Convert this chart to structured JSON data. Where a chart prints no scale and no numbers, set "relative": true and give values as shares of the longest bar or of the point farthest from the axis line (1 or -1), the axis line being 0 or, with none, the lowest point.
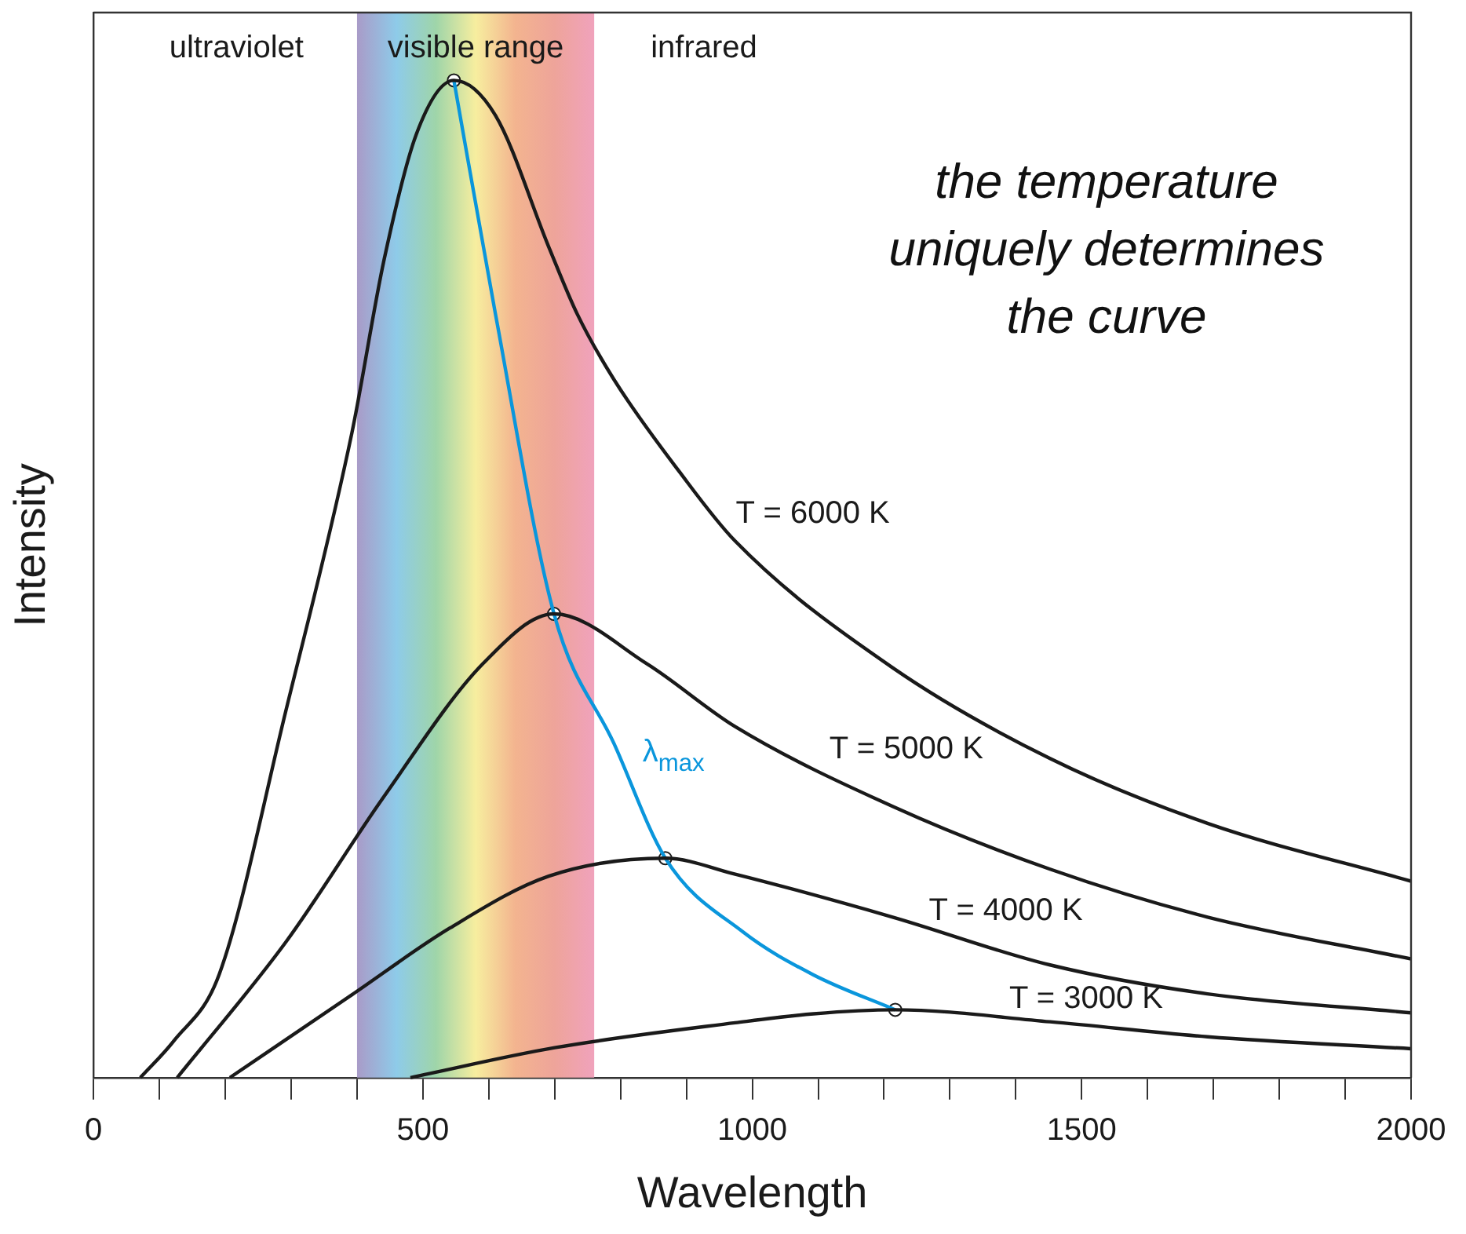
{
  "chart_data": {
    "type": "line",
    "relative": true,
    "xlabel": "Wavelength",
    "ylabel": "Intensity",
    "xlim": [
      0,
      2000
    ],
    "xticks": [
      0,
      {
        "value": 100,
        "label": null
      },
      {
        "value": 200,
        "label": null
      },
      {
        "value": 300,
        "label": null
      },
      {
        "value": 400,
        "label": null
      },
      500,
      {
        "value": 600,
        "label": null
      },
      {
        "value": 700,
        "label": null
      },
      {
        "value": 800,
        "label": null
      },
      {
        "value": 900,
        "label": null
      },
      1000,
      {
        "value": 1100,
        "label": null
      },
      {
        "value": 1200,
        "label": null
      },
      {
        "value": 1300,
        "label": null
      },
      {
        "value": 1400,
        "label": null
      },
      1500,
      {
        "value": 1600,
        "label": null
      },
      {
        "value": 1700,
        "label": null
      },
      {
        "value": 1800,
        "label": null
      },
      {
        "value": 1900,
        "label": null
      },
      2000
    ],
    "grid": false,
    "legend": false,
    "marker": "none",
    "line_style": "solid",
    "bands": [
      {
        "axis": "x",
        "from": 400,
        "to": 760,
        "label": "visible range",
        "color": "#f7ee9f"
      }
    ],
    "annotations": [
      "ultraviolet",
      "infrared",
      "the temperature uniquely determines the curve"
    ],
    "series": [
      {
        "name": "T = 6000 K",
        "color": "#1a1a1a",
        "x": [
          71,
          122,
          191,
          292,
          392,
          441,
          490,
          547,
          610,
          691,
          734,
          790,
          890,
          974,
          1213,
          1452,
          1691,
          2000
        ],
        "values": [
          0,
          0.037,
          0.104,
          0.368,
          0.646,
          0.82,
          0.946,
          1,
          0.965,
          0.833,
          0.766,
          0.7,
          0.607,
          0.538,
          0.411,
          0.32,
          0.255,
          0.197
        ]
      },
      {
        "name": "T = 5000 K",
        "color": "#1a1a1a",
        "x": [
          127,
          292,
          441,
          591,
          699,
          840,
          974,
          1213,
          1452,
          1691,
          2000
        ],
        "values": [
          0,
          0.136,
          0.282,
          0.415,
          0.465,
          0.415,
          0.352,
          0.272,
          0.209,
          0.161,
          0.119
        ]
      },
      {
        "name": "T = 4000 K",
        "color": "#1a1a1a",
        "x": [
          207,
          392,
          541,
          691,
          868,
          974,
          1213,
          1452,
          1691,
          2000
        ],
        "values": [
          0,
          0.083,
          0.15,
          0.202,
          0.22,
          0.204,
          0.161,
          0.113,
          0.084,
          0.065
        ]
      },
      {
        "name": "T = 3000 K",
        "color": "#1a1a1a",
        "x": [
          481,
          700,
          974,
          1093,
          1217,
          1452,
          1691,
          2000
        ],
        "values": [
          0,
          0.03,
          0.055,
          0.064,
          0.068,
          0.056,
          0.041,
          0.029
        ]
      },
      {
        "name": "λ$_{max}$",
        "color": "#0a96dc",
        "x": [
          547,
          610,
          699,
          790,
          868,
          986,
          1093,
          1217
        ],
        "values": [
          1,
          0.766,
          0.465,
          0.335,
          0.22,
          0.146,
          0.103,
          0.068
        ]
      },
      {
        "type": "scatter",
        "marker": "circle",
        "color": "#ffffff",
        "x": [
          547,
          699,
          868,
          1217
        ],
        "values": [
          1,
          0.465,
          0.22,
          0.068
        ]
      }
    ]
  }
}
